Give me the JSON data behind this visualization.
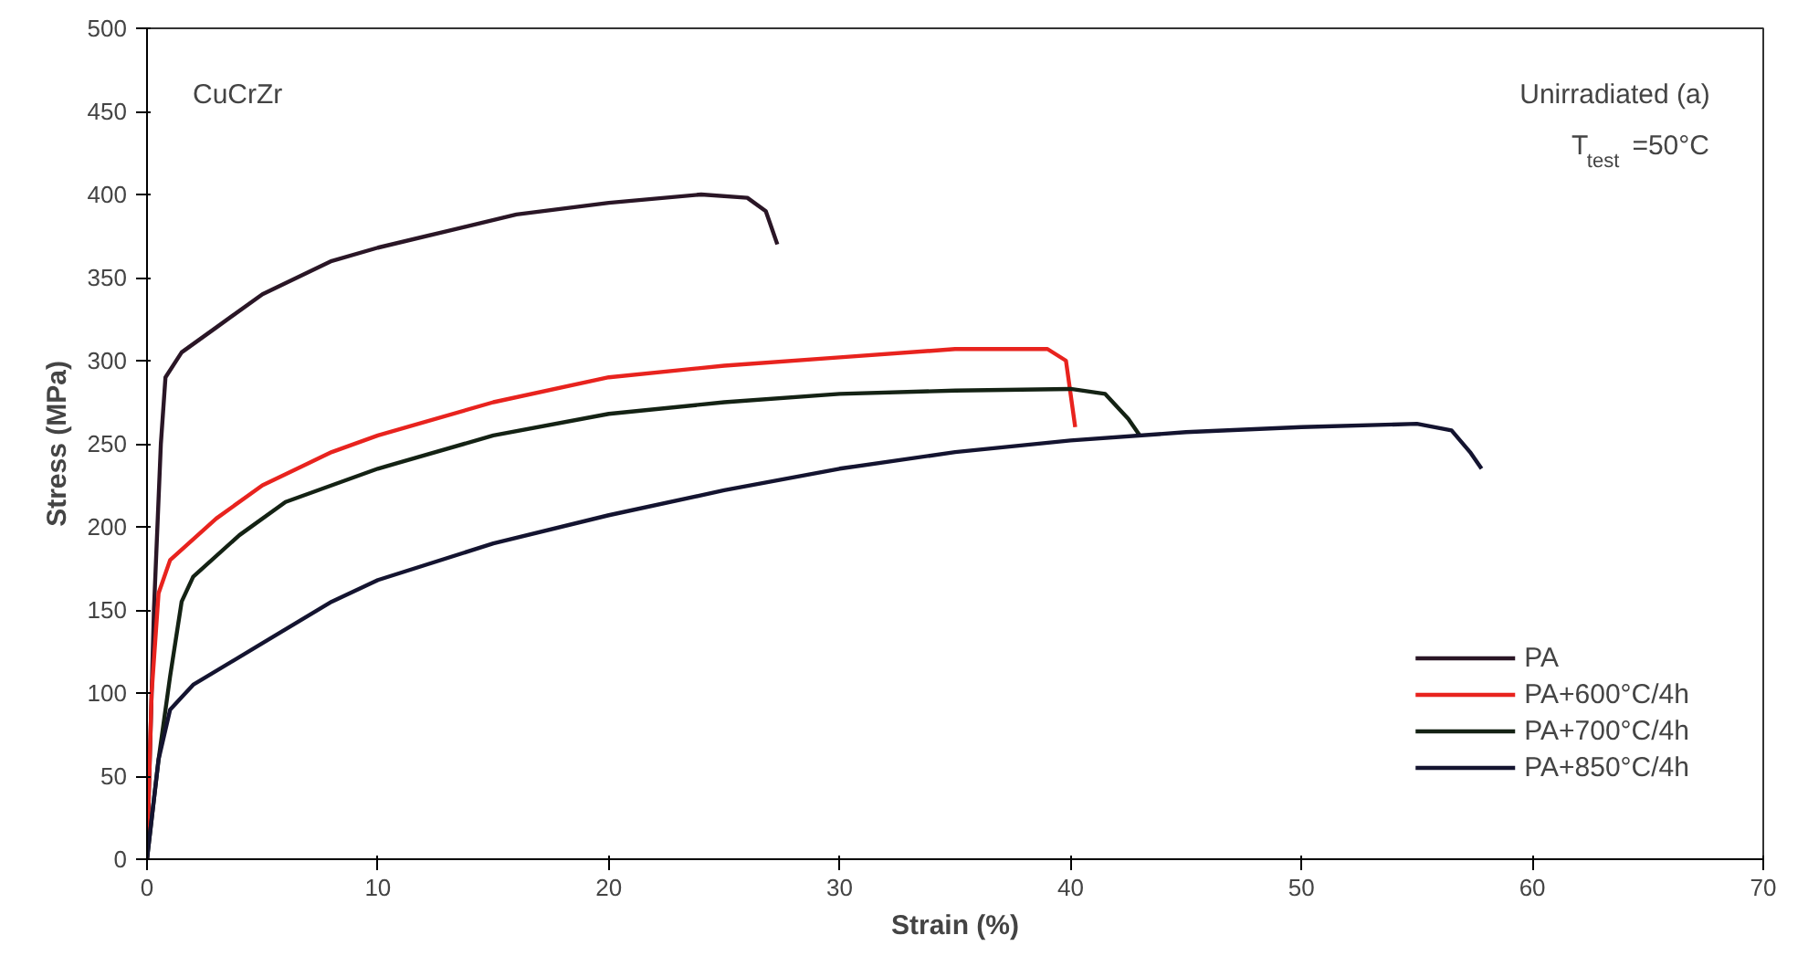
{
  "chart_data": {
    "type": "line",
    "xlabel": "Strain (%)",
    "ylabel": "Stress (MPa)",
    "xlim": [
      0,
      70
    ],
    "xticks": [
      0,
      10,
      20,
      30,
      40,
      50,
      60,
      70
    ],
    "ylim": [
      0,
      500
    ],
    "yticks": [
      0,
      50,
      100,
      150,
      200,
      250,
      300,
      350,
      400,
      450,
      500
    ],
    "grid": false,
    "legend": "bottom right",
    "marker": "none",
    "line_style": "solid",
    "annotations": [
      "CuCrZr",
      "Unirradiated  (a)",
      "T$_{test}$=50°C"
    ],
    "series": [
      {
        "name": "PA",
        "color": "#2a1626",
        "x": [
          0,
          0.3,
          0.6,
          0.8,
          1.5,
          3,
          5,
          8,
          10,
          13,
          16,
          20,
          24,
          26,
          26.8,
          27.3
        ],
        "values": [
          0,
          150,
          250,
          290,
          305,
          320,
          340,
          360,
          368,
          378,
          388,
          395,
          400,
          398,
          390,
          370
        ]
      },
      {
        "name": "PA+600°C/4h",
        "color": "#e8231e",
        "x": [
          0,
          0.2,
          0.5,
          1,
          3,
          5,
          8,
          10,
          15,
          20,
          25,
          30,
          35,
          39,
          39.8,
          40.2
        ],
        "values": [
          0,
          100,
          160,
          180,
          205,
          225,
          245,
          255,
          275,
          290,
          297,
          302,
          307,
          307,
          300,
          260
        ]
      },
      {
        "name": "PA+700°C/4h",
        "color": "#142214",
        "x": [
          0,
          0.5,
          1,
          1.5,
          2,
          4,
          6,
          10,
          15,
          20,
          25,
          30,
          35,
          40,
          41.5,
          42.5,
          43
        ],
        "values": [
          0,
          60,
          110,
          155,
          170,
          195,
          215,
          235,
          255,
          268,
          275,
          280,
          282,
          283,
          280,
          265,
          255
        ]
      },
      {
        "name": "PA+850°C/4h",
        "color": "#141430",
        "x": [
          0,
          0.5,
          1,
          2,
          5,
          8,
          10,
          15,
          20,
          25,
          30,
          35,
          40,
          45,
          50,
          55,
          56.5,
          57.3,
          57.8
        ],
        "values": [
          0,
          60,
          90,
          105,
          130,
          155,
          168,
          190,
          207,
          222,
          235,
          245,
          252,
          257,
          260,
          262,
          258,
          245,
          235
        ]
      }
    ]
  }
}
